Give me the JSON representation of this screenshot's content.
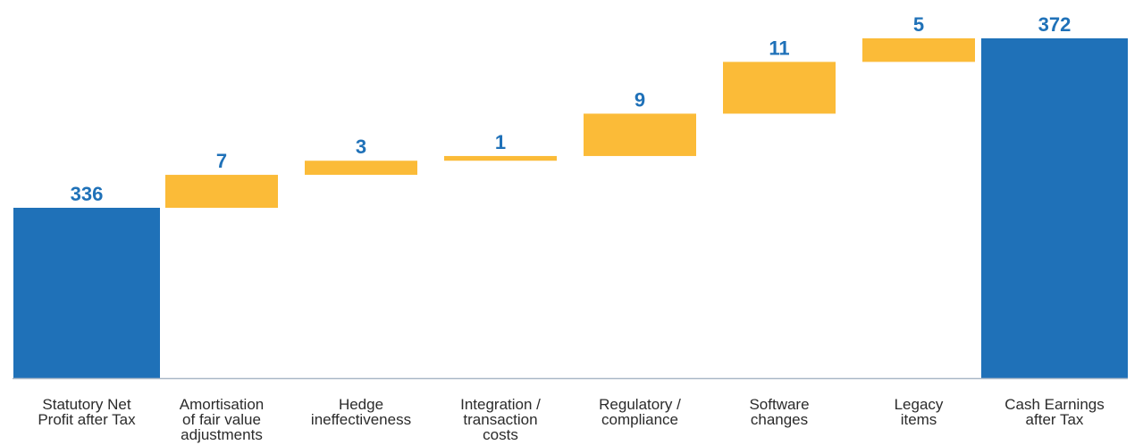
{
  "chart_data": {
    "type": "bar",
    "subtype": "waterfall",
    "categories": [
      [
        "Statutory Net",
        "Profit after Tax"
      ],
      [
        "Amortisation",
        "of fair value",
        "adjustments"
      ],
      [
        "Hedge",
        "ineffectiveness"
      ],
      [
        "Integration /",
        "transaction",
        "costs"
      ],
      [
        "Regulatory /",
        "compliance"
      ],
      [
        "Software",
        "changes"
      ],
      [
        "Legacy",
        "items"
      ],
      [
        "Cash Earnings",
        "after Tax"
      ]
    ],
    "values": [
      336,
      7,
      3,
      1,
      9,
      11,
      5,
      372
    ],
    "value_labels": [
      "336",
      "7",
      "3",
      "1",
      "9",
      "11",
      "5",
      "372"
    ],
    "bar_kinds": [
      "total",
      "increment",
      "increment",
      "increment",
      "increment",
      "increment",
      "increment",
      "total"
    ],
    "colors": {
      "total": "#1f71b8",
      "increment": "#fbbb38",
      "label": "#1f71b8",
      "axis": "#a9b8c7"
    },
    "grid": false,
    "legend": "none"
  }
}
